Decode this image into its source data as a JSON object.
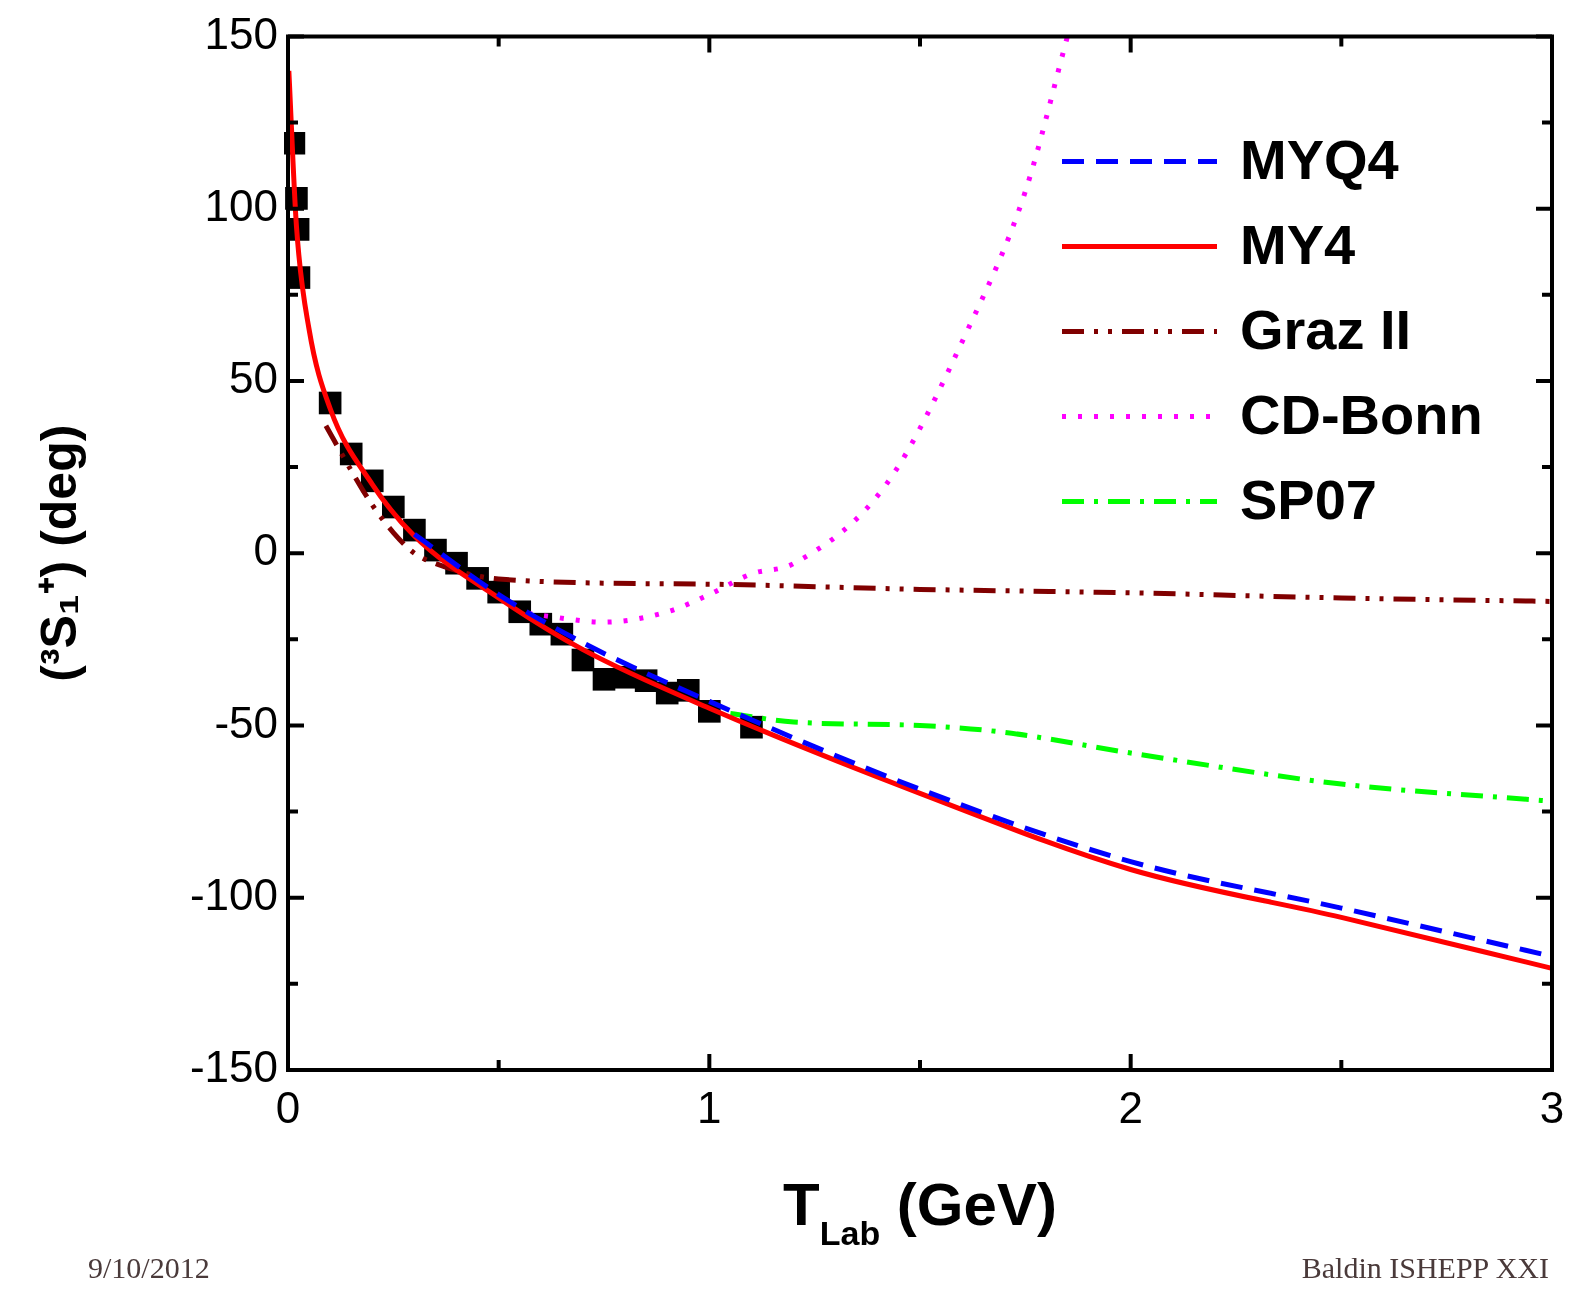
{
  "chart_data": {
    "type": "line",
    "xlabel": "T$_{Lab}$ (GeV)",
    "ylabel": "(³S₁⁺) (deg)",
    "xlim": [
      0,
      3
    ],
    "xticks": [
      0,
      {
        "value": 0.5,
        "label": null
      },
      1,
      {
        "value": 1.5,
        "label": null
      },
      2,
      {
        "value": 2.5,
        "label": null
      },
      3
    ],
    "ylim": [
      -150,
      150
    ],
    "yticks": [
      -150,
      {
        "value": -125,
        "label": null
      },
      -100,
      {
        "value": -75,
        "label": null
      },
      -50,
      {
        "value": -25,
        "label": null
      },
      0,
      {
        "value": 25,
        "label": null
      },
      50,
      {
        "value": 75,
        "label": null
      },
      100,
      {
        "value": 125,
        "label": null
      },
      150
    ],
    "grid": false,
    "legend": "top right",
    "annotations": [
      "9/10/2012",
      "Baldin ISHEPP XXI"
    ],
    "series": [
      {
        "type": "scatter",
        "marker": "square",
        "color": "#000000",
        "x": [
          0.014,
          0.02,
          0.024,
          0.026,
          0.1,
          0.15,
          0.2,
          0.25,
          0.3,
          0.35,
          0.4,
          0.45,
          0.5,
          0.55,
          0.6,
          0.65,
          0.7,
          0.75,
          0.8,
          0.85,
          0.9,
          0.95,
          1.0,
          1.1
        ],
        "values": [
          119,
          103,
          94,
          80,
          43.6,
          28.8,
          21,
          13.4,
          6.7,
          0.9,
          -2.9,
          -7.3,
          -11.3,
          -17,
          -20.6,
          -23.5,
          -31,
          -36.6,
          -36,
          -37,
          -40.6,
          -39.8,
          -45.9,
          -50.5
        ]
      },
      {
        "name": "MYQ4",
        "color": "#0000ff",
        "line_style": "dashed",
        "x": [
          0.3,
          0.5,
          0.7,
          1.0,
          1.5,
          2.0,
          2.5,
          3.0
        ],
        "values": [
          5.5,
          -12,
          -26,
          -43,
          -68.5,
          -89.5,
          -103,
          -117
        ]
      },
      {
        "name": "MY4",
        "color": "#ff0000",
        "line_style": "solid",
        "x": [
          0.002,
          0.02,
          0.05,
          0.1,
          0.2,
          0.3,
          0.5,
          0.7,
          1.0,
          1.5,
          2.0,
          2.5,
          3.0
        ],
        "values": [
          140,
          95,
          65,
          42,
          20,
          5,
          -13,
          -28,
          -45,
          -69.7,
          -91.8,
          -105.7,
          -120.5
        ]
      },
      {
        "name": "Graz II",
        "color": "#800000",
        "line_style": "dashdotdot",
        "x": [
          0.09,
          0.15,
          0.2,
          0.25,
          0.3,
          0.35,
          0.5,
          1.0,
          1.5,
          2.0,
          2.5,
          3.0
        ],
        "values": [
          37,
          24,
          14,
          6,
          0,
          -3,
          -7.5,
          -9,
          -10.5,
          -11.5,
          -13,
          -14
        ]
      },
      {
        "name": "CD-Bonn",
        "color": "#ff00ff",
        "line_style": "dotted",
        "x": [
          0.57,
          0.6,
          0.75,
          0.9,
          1.0,
          1.1,
          1.2,
          1.42,
          1.61,
          1.75,
          1.85
        ],
        "values": [
          -17.5,
          -18,
          -20,
          -17,
          -12,
          -6,
          -3,
          20,
          64,
          105,
          150
        ]
      },
      {
        "name": "SP07",
        "color": "#00ff00",
        "line_style": "dashdot",
        "x": [
          1.05,
          1.2,
          1.5,
          1.7,
          2.0,
          2.5,
          3.0
        ],
        "values": [
          -46.5,
          -49,
          -50,
          -52,
          -58,
          -67,
          -72
        ]
      }
    ]
  }
}
